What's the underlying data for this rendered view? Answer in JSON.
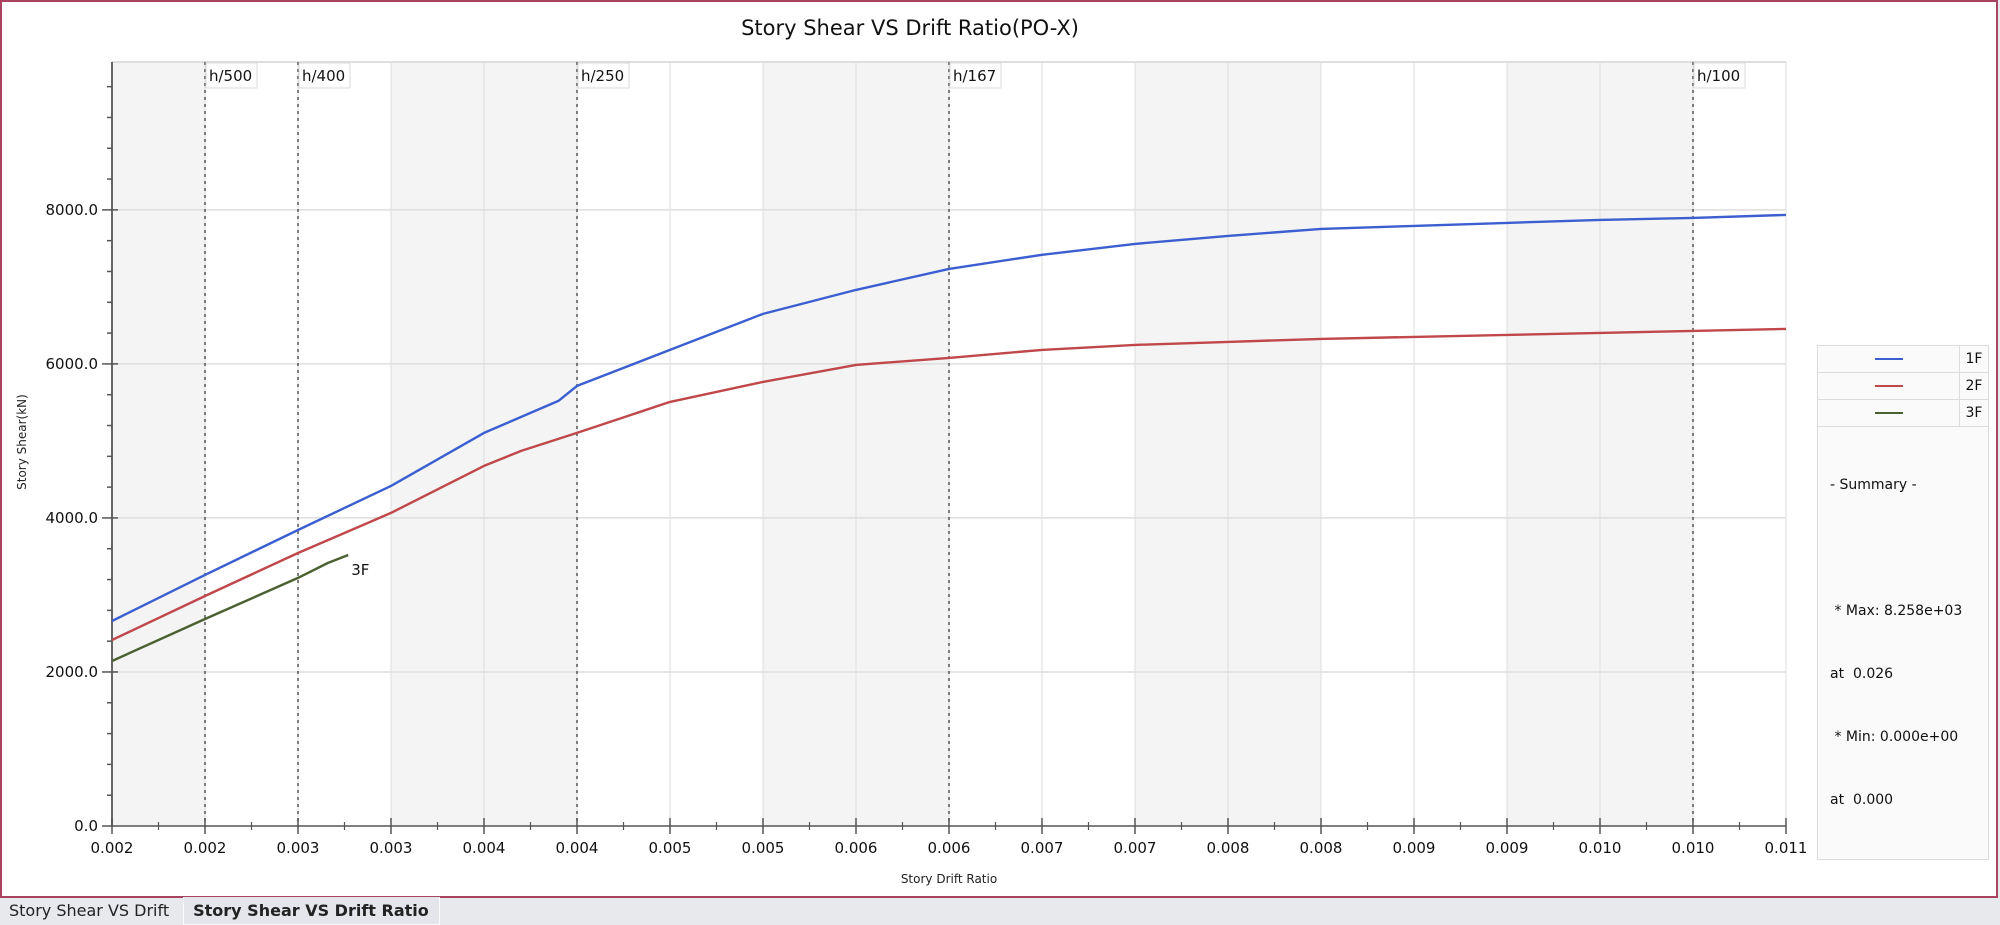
{
  "tabs": [
    {
      "label": "Story Shear VS Drift",
      "active": false
    },
    {
      "label": "Story Shear VS Drift Ratio",
      "active": true
    }
  ],
  "colors": {
    "series_1F": "#3b5fd0",
    "series_2F": "#c0474a",
    "series_3F": "#4b6030",
    "frame": "#a8445f",
    "band": "#f4f4f4",
    "grid": "#dedede"
  },
  "chart_data": {
    "type": "line",
    "title": "Story Shear VS Drift Ratio(PO-X)",
    "xlabel": "Story Drift Ratio",
    "ylabel": "Story Shear(kN)",
    "xlim": [
      0.0015,
      0.0105
    ],
    "ylim": [
      0,
      9920
    ],
    "grid": true,
    "legend_position": "right",
    "x_ticks": [
      0.0015,
      0.002,
      0.0025,
      0.003,
      0.0035,
      0.004,
      0.0045,
      0.005,
      0.0055,
      0.006,
      0.0065,
      0.007,
      0.0075,
      0.008,
      0.0085,
      0.009,
      0.0095,
      0.01,
      0.0105
    ],
    "x_tick_labels": [
      "0.002",
      "0.002",
      "0.003",
      "0.003",
      "0.004",
      "0.004",
      "0.005",
      "0.005",
      "0.006",
      "0.006",
      "0.007",
      "0.007",
      "0.008",
      "0.008",
      "0.009",
      "0.009",
      "0.010",
      "0.010",
      "0.011"
    ],
    "y_ticks": [
      0,
      2000,
      4000,
      6000,
      8000
    ],
    "y_tick_labels": [
      "0.0",
      "2000.0",
      "4000.0",
      "6000.0",
      "8000.0"
    ],
    "y_minor_step": 400,
    "reference_lines": [
      {
        "label": "h/500",
        "x": 0.002
      },
      {
        "label": "h/400",
        "x": 0.0025
      },
      {
        "label": "h/250",
        "x": 0.004
      },
      {
        "label": "h/167",
        "x": 0.006
      },
      {
        "label": "h/100",
        "x": 0.01
      }
    ],
    "series": [
      {
        "name": "1F",
        "x": [
          0.0015,
          0.002,
          0.0025,
          0.003,
          0.0035,
          0.0039,
          0.004,
          0.0045,
          0.005,
          0.0055,
          0.006,
          0.0065,
          0.007,
          0.0075,
          0.008,
          0.0085,
          0.009,
          0.0095,
          0.01,
          0.0105
        ],
        "values": [
          2662,
          3260,
          3844,
          4416,
          5104,
          5520,
          5714,
          6182,
          6649,
          6961,
          7234,
          7416,
          7558,
          7662,
          7753,
          7792,
          7831,
          7870,
          7896,
          7935
        ]
      },
      {
        "name": "2F",
        "x": [
          0.0015,
          0.002,
          0.0025,
          0.003,
          0.0035,
          0.0037,
          0.004,
          0.0045,
          0.005,
          0.0055,
          0.006,
          0.0065,
          0.007,
          0.0075,
          0.008,
          0.0085,
          0.009,
          0.0095,
          0.01,
          0.0105
        ],
        "values": [
          2415,
          2987,
          3545,
          4065,
          4675,
          4870,
          5104,
          5506,
          5766,
          5987,
          6078,
          6182,
          6247,
          6286,
          6325,
          6351,
          6377,
          6403,
          6429,
          6455
        ]
      },
      {
        "name": "3F",
        "x": [
          0.0015,
          0.002,
          0.0025,
          0.00266,
          0.00277
        ],
        "values": [
          2143,
          2688,
          3221,
          3415,
          3519
        ],
        "end_label": "3F"
      }
    ],
    "legend": {
      "entries": [
        "1F",
        "2F",
        "3F"
      ],
      "summary_lines": [
        "- Summary -",
        "",
        " * Max: 8.258e+03",
        "at  0.026",
        " * Min: 0.000e+00",
        "at  0.000"
      ]
    }
  }
}
